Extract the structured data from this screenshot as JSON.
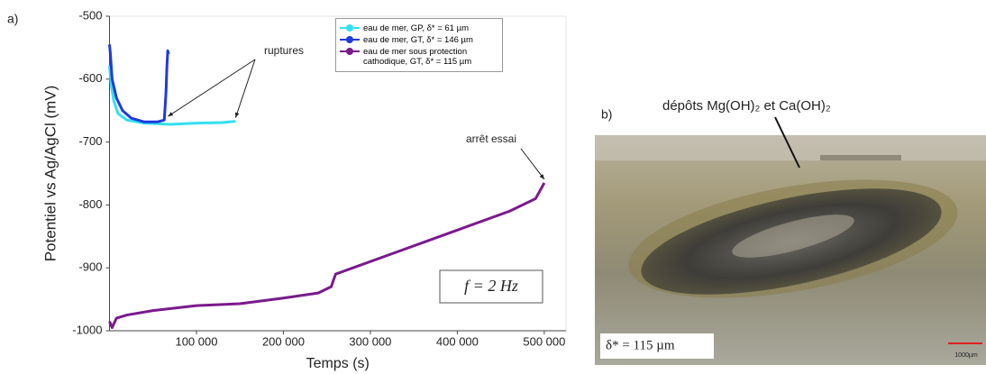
{
  "chart_data": {
    "type": "line",
    "panel_label": "a)",
    "x_label": "Temps (s)",
    "y_label": "Potentiel vs Ag/AgCl (mV)",
    "xlim": [
      0,
      525000
    ],
    "xticks": [
      {
        "value": 100000,
        "label": "100 000"
      },
      {
        "value": 200000,
        "label": "200 000"
      },
      {
        "value": 300000,
        "label": "300 000"
      },
      {
        "value": 400000,
        "label": "400 000"
      },
      {
        "value": 500000,
        "label": "500 000"
      }
    ],
    "ylim": [
      -1000,
      -500
    ],
    "yticks": [
      -1000,
      -900,
      -800,
      -700,
      -600,
      -500
    ],
    "legend": "upper-center",
    "annotations": [
      "ruptures",
      "arrêt essai",
      "f = 2 Hz"
    ],
    "series": [
      {
        "name": "eau de mer, GP, δ* = 61 µm",
        "color": "#33e0f0",
        "x": [
          0,
          2000,
          5000,
          10000,
          20000,
          40000,
          70000,
          100000,
          130000,
          145000
        ],
        "values": [
          -578,
          -610,
          -635,
          -655,
          -665,
          -670,
          -672,
          -670,
          -669,
          -667
        ]
      },
      {
        "name": "eau de mer, GT, δ* = 146 µm",
        "color": "#1f3ae0",
        "x": [
          0,
          1000,
          3000,
          8000,
          15000,
          25000,
          40000,
          55000,
          63000,
          65000,
          66000,
          67000,
          68000
        ],
        "values": [
          -545,
          -560,
          -600,
          -630,
          -650,
          -662,
          -668,
          -668,
          -665,
          -620,
          -580,
          -555,
          -560
        ]
      },
      {
        "name": "eau de mer sous protection cathodique, GT, δ* = 115 µm",
        "color": "#7a1a8c",
        "x": [
          0,
          3000,
          8000,
          20000,
          50000,
          100000,
          150000,
          200000,
          240000,
          255000,
          260000,
          280000,
          320000,
          380000,
          420000,
          460000,
          490000,
          500000
        ],
        "values": [
          -985,
          -995,
          -980,
          -975,
          -968,
          -960,
          -957,
          -948,
          -940,
          -930,
          -910,
          -900,
          -880,
          -850,
          -830,
          -810,
          -790,
          -765
        ]
      }
    ]
  },
  "photo": {
    "panel_label": "b)",
    "annotation": "dépôts Mg(OH)₂ et Ca(OH)₂",
    "thickness": "δ* = 115 µm",
    "scale_label": "1000µm"
  }
}
